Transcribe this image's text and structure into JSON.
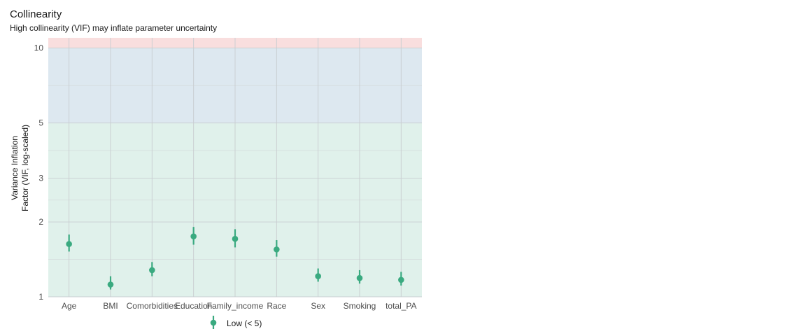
{
  "chart_data": {
    "type": "scatter",
    "title": "Collinearity",
    "subtitle": "High collinearity (VIF) may inflate parameter uncertainty",
    "xlabel": "",
    "ylabel": "Variance Inflation Factor (VIF, log-scaled)",
    "ylabel_lines": [
      "Variance Inflation",
      "Factor (VIF, log-scaled)"
    ],
    "y_scale": "log",
    "ylim": [
      1,
      11
    ],
    "y_ticks": [
      1,
      2,
      3,
      5,
      10
    ],
    "categories": [
      "Age",
      "BMI",
      "Comorbidities",
      "Education",
      "Family_income",
      "Race",
      "Sex",
      "Smoking",
      "total_PA"
    ],
    "series": [
      {
        "name": "Low (< 5)",
        "color": "#3aaa80",
        "values": [
          1.63,
          1.12,
          1.28,
          1.75,
          1.71,
          1.55,
          1.21,
          1.19,
          1.17
        ],
        "lower": [
          1.52,
          1.07,
          1.21,
          1.62,
          1.58,
          1.45,
          1.15,
          1.13,
          1.11
        ],
        "upper": [
          1.78,
          1.21,
          1.38,
          1.91,
          1.87,
          1.69,
          1.3,
          1.28,
          1.26
        ]
      }
    ],
    "bands": [
      {
        "from": 1,
        "to": 5,
        "color": "#e0f1eb"
      },
      {
        "from": 5,
        "to": 10,
        "color": "#dde8f0"
      },
      {
        "from": 10,
        "to": 11,
        "color": "#f9dede"
      }
    ],
    "grid": true,
    "legend_position": "bottom"
  }
}
